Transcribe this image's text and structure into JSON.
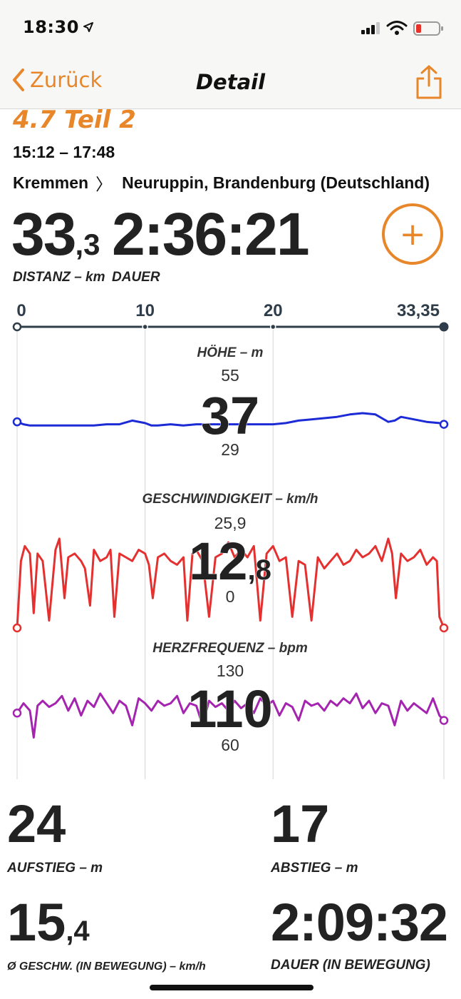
{
  "status": {
    "time": "18:30"
  },
  "nav": {
    "back_label": "Zurück",
    "title": "Detail"
  },
  "activity": {
    "title": "4.7 Teil 2",
    "time_range": "15:12 – 17:48",
    "route_from": "Kremmen",
    "route_chevron": "〉",
    "route_to": "Neuruppin, Brandenburg (Deutschland)",
    "distance_int": "33",
    "distance_dec": ",3",
    "distance_label": "DISTANZ – km",
    "duration": "2:36:21",
    "duration_label": "DAUER",
    "add_symbol": "+"
  },
  "distance_axis": {
    "ticks": [
      "0",
      "10",
      "20",
      "33,35"
    ],
    "values": [
      0,
      10,
      20,
      33.35
    ]
  },
  "colors": {
    "accent": "#e8862a",
    "elevation": "#1c2bd6",
    "speed": "#e53030",
    "heart": "#a424b0",
    "axis": "#2f3d4a"
  },
  "chart_data": [
    {
      "type": "line",
      "title": "HÖHE – m",
      "max_label": "55",
      "min_label": "29",
      "avg_label": "37",
      "ylim": [
        29,
        55
      ],
      "x": [
        0,
        0.5,
        1,
        2,
        3,
        4,
        5,
        6,
        7,
        8,
        9,
        10,
        10.5,
        11,
        12,
        13,
        14,
        15,
        16,
        17,
        18,
        19,
        20,
        21,
        22,
        23,
        24,
        25,
        26,
        27,
        28,
        28.5,
        29,
        29.5,
        30,
        31,
        32,
        33,
        33.35
      ],
      "values": [
        37,
        35,
        34,
        34,
        34,
        34,
        34,
        34,
        35,
        35,
        38,
        36,
        34,
        34,
        35,
        34,
        35,
        35,
        35,
        35,
        35,
        35,
        35,
        36,
        38,
        39,
        40,
        41,
        43,
        44,
        43,
        40,
        37,
        38,
        41,
        39,
        37,
        36,
        35
      ]
    },
    {
      "type": "line",
      "title": "GESCHWINDIGKEIT – km/h",
      "max_label": "25,9",
      "min_label": "0",
      "avg_int": "12",
      "avg_dec": ",8",
      "ylim": [
        0,
        25.9
      ],
      "x": [
        0,
        0.3,
        0.6,
        1,
        1.3,
        1.6,
        2,
        2.5,
        3,
        3.3,
        3.7,
        4,
        4.5,
        5,
        5.3,
        5.7,
        6,
        6.5,
        7,
        7.3,
        7.6,
        8,
        8.5,
        9,
        9.5,
        10,
        10.3,
        10.6,
        11,
        11.5,
        12,
        12.5,
        13,
        13.3,
        13.7,
        14,
        14.5,
        15,
        15.5,
        16,
        16.5,
        17,
        17.5,
        18,
        18.5,
        19,
        19.5,
        20,
        20.5,
        21,
        21.5,
        22,
        22.5,
        23,
        23.5,
        24,
        24.5,
        25,
        25.5,
        26,
        26.5,
        27,
        27.5,
        28,
        28.5,
        29,
        29.3,
        29.6,
        30,
        30.5,
        31,
        31.5,
        32,
        32.5,
        32.8,
        33,
        33.35
      ],
      "values": [
        0,
        18,
        22,
        20,
        4,
        20,
        18,
        2,
        21,
        24,
        8,
        19,
        20,
        18,
        16,
        6,
        21,
        18,
        19,
        21,
        3,
        20,
        19,
        18,
        21,
        20,
        17,
        8,
        19,
        20,
        18,
        17,
        19,
        2,
        20,
        21,
        18,
        3,
        19,
        20,
        23,
        19,
        21,
        19,
        22,
        2,
        20,
        22,
        18,
        19,
        3,
        18,
        17,
        2,
        19,
        16,
        18,
        20,
        17,
        18,
        21,
        19,
        20,
        22,
        18,
        24,
        20,
        8,
        20,
        18,
        19,
        21,
        17,
        19,
        18,
        3,
        0
      ]
    },
    {
      "type": "line",
      "title": "HERZFREQUENZ – bpm",
      "max_label": "130",
      "min_label": "60",
      "avg_label": "110",
      "ylim": [
        60,
        130
      ],
      "x": [
        0,
        0.5,
        1,
        1.3,
        1.6,
        2,
        2.5,
        3,
        3.5,
        4,
        4.5,
        5,
        5.5,
        6,
        6.5,
        7,
        7.5,
        8,
        8.5,
        9,
        9.5,
        10,
        10.5,
        11,
        11.5,
        12,
        12.5,
        13,
        13.5,
        14,
        14.5,
        15,
        15.5,
        16,
        16.5,
        17,
        17.5,
        18,
        18.5,
        19,
        19.5,
        20,
        20.5,
        21,
        21.5,
        22,
        22.5,
        23,
        23.5,
        24,
        24.5,
        25,
        25.5,
        26,
        26.5,
        27,
        27.5,
        28,
        28.5,
        29,
        29.5,
        30,
        30.5,
        31,
        31.5,
        32,
        32.5,
        33,
        33.35
      ],
      "values": [
        110,
        118,
        112,
        90,
        116,
        120,
        115,
        118,
        124,
        112,
        122,
        108,
        120,
        115,
        126,
        118,
        110,
        120,
        116,
        100,
        122,
        118,
        112,
        120,
        116,
        118,
        124,
        110,
        118,
        116,
        100,
        120,
        115,
        118,
        112,
        120,
        114,
        118,
        110,
        122,
        116,
        120,
        108,
        118,
        115,
        104,
        120,
        116,
        118,
        112,
        120,
        116,
        122,
        118,
        126,
        114,
        120,
        110,
        118,
        116,
        100,
        120,
        112,
        118,
        114,
        110,
        122,
        108,
        104
      ]
    }
  ],
  "stats": [
    {
      "value_int": "24",
      "value_dec": "",
      "label": "AUFSTIEG – m"
    },
    {
      "value_int": "17",
      "value_dec": "",
      "label": "ABSTIEG – m"
    },
    {
      "value_int": "15",
      "value_dec": ",4",
      "label": "Ø GESCHW. (IN BEWEGUNG) – km/h"
    },
    {
      "value_int": "2:09:32",
      "value_dec": "",
      "label": "DAUER (IN BEWEGUNG)"
    }
  ]
}
